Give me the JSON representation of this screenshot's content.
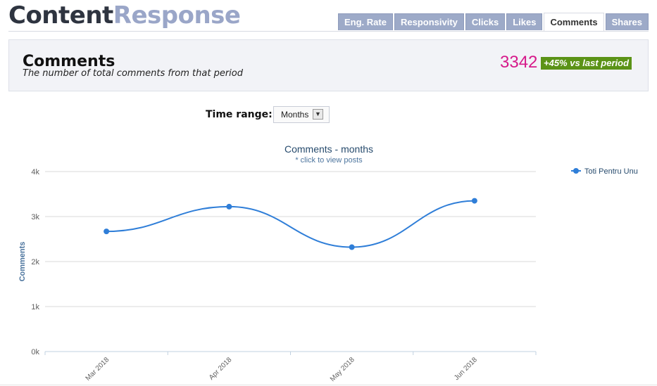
{
  "brand": {
    "part1": "Content",
    "part2": "Response"
  },
  "tabs": [
    {
      "label": "Eng. Rate",
      "active": false
    },
    {
      "label": "Responsivity",
      "active": false
    },
    {
      "label": "Clicks",
      "active": false
    },
    {
      "label": "Likes",
      "active": false
    },
    {
      "label": "Comments",
      "active": true
    },
    {
      "label": "Shares",
      "active": false
    }
  ],
  "summary": {
    "title": "Comments",
    "subtitle": "The number of total comments from that period",
    "value": "3342",
    "delta": "+45% vs last period"
  },
  "time_range": {
    "label": "Time range:",
    "selected": "Months"
  },
  "colors": {
    "series": "#2f7ed8",
    "value": "#d6198a",
    "delta_bg": "#5b9317",
    "tab_bg": "#9daac8",
    "brand_dark": "#2e3440",
    "brand_light": "#9aa6c8"
  },
  "chart_data": {
    "type": "line",
    "title": "Comments - months",
    "subtitle": "* click to view posts",
    "xlabel": "",
    "ylabel": "Comments",
    "categories": [
      "Mar 2018",
      "Apr 2018",
      "May 2018",
      "Jun 2018"
    ],
    "series": [
      {
        "name": "Toti Pentru Unu",
        "values": [
          2670,
          3220,
          2320,
          3350
        ]
      }
    ],
    "ylim": [
      0,
      4000
    ],
    "yticks": [
      "0k",
      "1k",
      "2k",
      "3k",
      "4k"
    ],
    "smooth": true,
    "grid": true,
    "legend": "top-right"
  }
}
